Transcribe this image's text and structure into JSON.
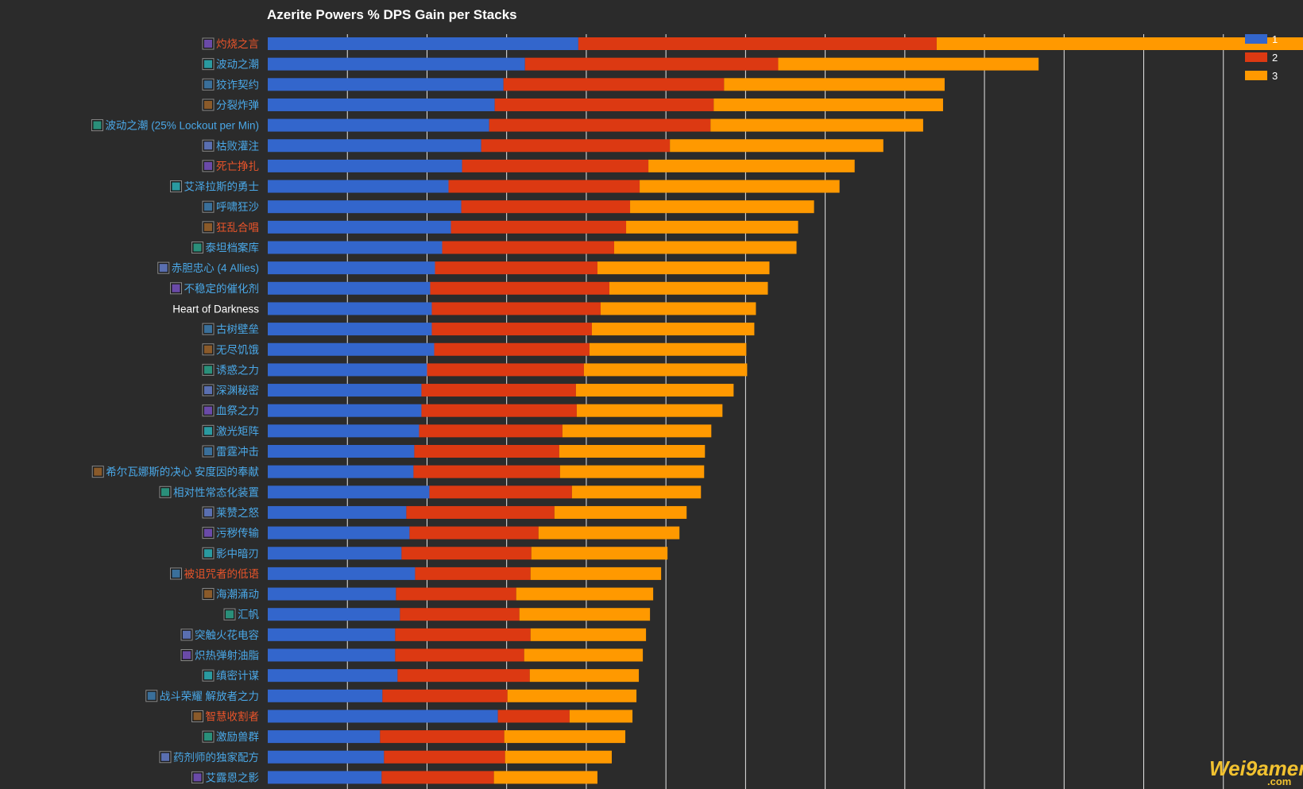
{
  "colors": {
    "background": "#2b2b2b",
    "grid": "#e6e6e6",
    "stack1": "#3366cc",
    "stack2": "#dc3912",
    "stack3": "#ff9900",
    "label_blue": "#4aa8e8",
    "label_red": "#e8542a",
    "label_white": "#ffffff"
  },
  "watermark": {
    "text": "Wei9amer",
    "sub": ".com"
  },
  "chart_data": {
    "type": "bar",
    "orientation": "horizontal",
    "stacked": true,
    "title": "Azerite Powers % DPS Gain per Stacks",
    "xlim": [
      0,
      13
    ],
    "grid": true,
    "legend_position": "top-right",
    "categories": [
      {
        "label": "灼烧之言",
        "color": "red",
        "icons": [
          "purple-spell-icon"
        ]
      },
      {
        "label": "波动之潮",
        "color": "blue",
        "icons": [
          "teal-wave-icon"
        ]
      },
      {
        "label": "狡诈契约",
        "color": "blue",
        "icons": [
          "teal-rune-icon"
        ]
      },
      {
        "label": "分裂炸弹",
        "color": "blue",
        "icons": [
          "bomb-icon"
        ]
      },
      {
        "label": "波动之潮 (25% Lockout per Min)",
        "color": "blue",
        "icons": [
          "teal-wave-icon"
        ]
      },
      {
        "label": "枯败灌注",
        "color": "blue",
        "icons": [
          "blue-orb-icon"
        ]
      },
      {
        "label": "死亡挣扎",
        "color": "red",
        "icons": [
          "skull-icon"
        ]
      },
      {
        "label": "艾泽拉斯的勇士",
        "color": "blue",
        "icons": [
          "helm-icon"
        ]
      },
      {
        "label": "呼啸狂沙",
        "color": "blue",
        "icons": [
          "sand-icon"
        ]
      },
      {
        "label": "狂乱合唱",
        "color": "red",
        "icons": [
          "void-icon"
        ]
      },
      {
        "label": "泰坦档案库",
        "color": "blue",
        "icons": [
          "archive-icon"
        ]
      },
      {
        "label": "赤胆忠心 (4 Allies)",
        "color": "blue",
        "icons": [
          "ally-icon"
        ]
      },
      {
        "label": "不稳定的催化剂",
        "color": "blue",
        "icons": [
          "catalyst-icon"
        ]
      },
      {
        "label": "Heart of Darkness",
        "color": "white",
        "icons": []
      },
      {
        "label": "古树壁垒",
        "color": "blue",
        "icons": [
          "tree-icon"
        ]
      },
      {
        "label": "无尽饥饿",
        "color": "blue",
        "icons": [
          "hunger-icon"
        ]
      },
      {
        "label": "诱惑之力",
        "color": "blue",
        "icons": [
          "siren-icon"
        ]
      },
      {
        "label": "深渊秘密",
        "color": "blue",
        "icons": [
          "abyss-icon"
        ]
      },
      {
        "label": "血祭之力",
        "color": "blue",
        "icons": [
          "blood-icon"
        ]
      },
      {
        "label": "激光矩阵",
        "color": "blue",
        "icons": [
          "laser-icon"
        ]
      },
      {
        "label": "雷霆冲击",
        "color": "blue",
        "icons": [
          "thunder-icon"
        ]
      },
      {
        "label": "希尔瓦娜斯的决心 安度因的奉献",
        "color": "blue",
        "icons": [
          "sylvanas-icon",
          "anduin-icon"
        ]
      },
      {
        "label": "相对性常态化装置",
        "color": "blue",
        "icons": [
          "gear-device-icon"
        ]
      },
      {
        "label": "莱赞之怒",
        "color": "blue",
        "icons": [
          "rezan-icon"
        ]
      },
      {
        "label": "污秽传输",
        "color": "blue",
        "icons": [
          "filth-icon"
        ]
      },
      {
        "label": "影中暗刃",
        "color": "blue",
        "icons": [
          "blade-icon"
        ]
      },
      {
        "label": "被诅咒者的低语",
        "color": "red",
        "icons": [
          "whisper-icon"
        ]
      },
      {
        "label": "海潮涌动",
        "color": "blue",
        "icons": [
          "tide-icon"
        ]
      },
      {
        "label": "汇帆",
        "color": "blue",
        "icons": [
          "sail-icon"
        ]
      },
      {
        "label": "突触火花电容",
        "color": "blue",
        "icons": [
          "spark-icon"
        ]
      },
      {
        "label": "炽热弹射油脂",
        "color": "blue",
        "icons": [
          "grease-icon"
        ]
      },
      {
        "label": "缜密计谋",
        "color": "blue",
        "icons": [
          "scheme-icon"
        ]
      },
      {
        "label": "战斗荣耀 解放者之力",
        "color": "blue",
        "icons": [
          "glory-icon",
          "liberator-icon"
        ]
      },
      {
        "label": "智慧收割者",
        "color": "red",
        "icons": [
          "harvester-icon"
        ]
      },
      {
        "label": "激励兽群",
        "color": "blue",
        "icons": [
          "beast-icon"
        ]
      },
      {
        "label": "药剂师的独家配方",
        "color": "blue",
        "icons": [
          "potion-icon"
        ]
      },
      {
        "label": "艾露恩之影",
        "color": "blue",
        "icons": [
          "moon-icon"
        ]
      }
    ],
    "series": [
      {
        "name": "1",
        "color": "#3366cc",
        "values": [
          3.9,
          3.23,
          2.96,
          2.85,
          2.78,
          2.68,
          2.44,
          2.27,
          2.43,
          2.3,
          2.19,
          2.1,
          2.04,
          2.06,
          2.06,
          2.09,
          2.0,
          1.93,
          1.93,
          1.9,
          1.84,
          1.83,
          2.03,
          1.74,
          1.78,
          1.68,
          1.85,
          1.61,
          1.66,
          1.6,
          1.6,
          1.63,
          1.44,
          2.89,
          1.41,
          1.46,
          1.43
        ]
      },
      {
        "name": "2",
        "color": "#dc3912",
        "values": [
          4.5,
          3.18,
          2.77,
          2.75,
          2.78,
          2.37,
          2.34,
          2.4,
          2.12,
          2.2,
          2.16,
          2.04,
          2.25,
          2.12,
          2.01,
          1.95,
          1.97,
          1.94,
          1.95,
          1.8,
          1.82,
          1.84,
          1.79,
          1.86,
          1.62,
          1.63,
          1.45,
          1.51,
          1.5,
          1.7,
          1.62,
          1.66,
          1.57,
          0.9,
          1.56,
          1.52,
          1.41
        ]
      },
      {
        "name": "3",
        "color": "#ff9900",
        "values": [
          4.85,
          3.27,
          2.77,
          2.88,
          2.67,
          2.68,
          2.59,
          2.51,
          2.31,
          2.16,
          2.29,
          2.16,
          1.99,
          1.95,
          2.04,
          1.97,
          2.05,
          1.98,
          1.83,
          1.87,
          1.83,
          1.81,
          1.62,
          1.66,
          1.77,
          1.71,
          1.64,
          1.72,
          1.64,
          1.45,
          1.49,
          1.37,
          1.62,
          0.79,
          1.52,
          1.34,
          1.3
        ]
      }
    ]
  }
}
